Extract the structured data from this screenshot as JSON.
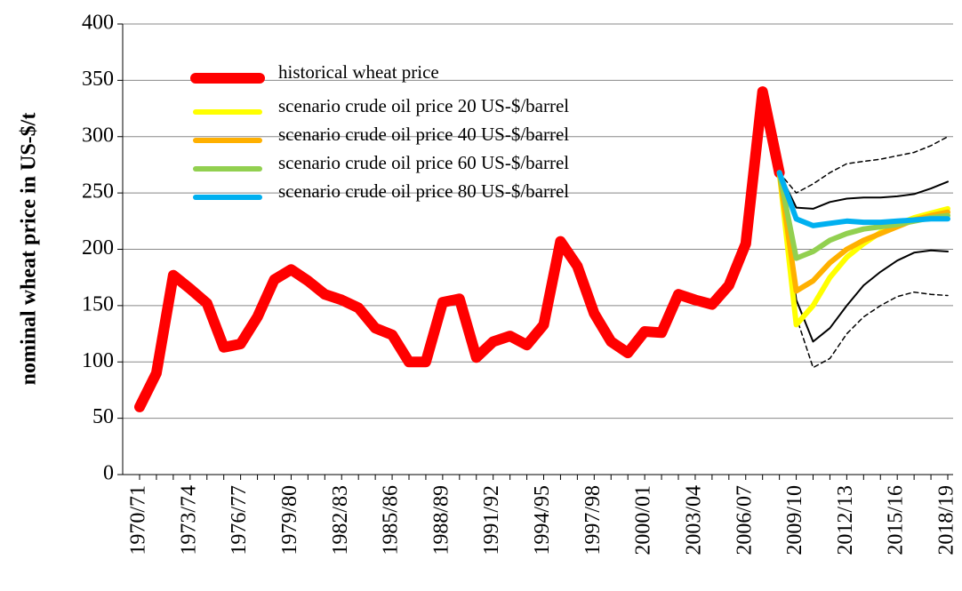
{
  "chart_data": {
    "type": "line",
    "y_label": "nominal wheat price in US-$/t",
    "categories": [
      "1970/71",
      null,
      null,
      "1973/74",
      null,
      null,
      "1976/77",
      null,
      null,
      "1979/80",
      null,
      null,
      "1982/83",
      null,
      null,
      "1985/86",
      null,
      null,
      "1988/89",
      null,
      null,
      "1991/92",
      null,
      null,
      "1994/95",
      null,
      null,
      "1997/98",
      null,
      null,
      "2000/01",
      null,
      null,
      "2003/04",
      null,
      null,
      "2006/07",
      null,
      null,
      "2009/10",
      null,
      null,
      "2012/13",
      null,
      null,
      "2015/16",
      null,
      null,
      "2018/19"
    ],
    "ylim": [
      0,
      400
    ],
    "yticks": [
      0,
      50,
      100,
      150,
      200,
      250,
      300,
      350,
      400
    ],
    "grid": true,
    "legend": "upper left",
    "series": [
      {
        "name": "historical wheat price",
        "color": "#ff0000",
        "width": 12,
        "values": [
          60,
          90,
          177,
          165,
          152,
          113,
          116,
          140,
          173,
          182,
          172,
          160,
          155,
          148,
          130,
          124,
          100,
          100,
          153,
          156,
          104,
          118,
          123,
          115,
          133,
          207,
          185,
          143,
          118,
          108,
          127,
          126,
          160,
          155,
          151,
          168,
          205,
          340,
          268,
          null,
          null,
          null,
          null,
          null,
          null,
          null,
          null,
          null,
          null
        ]
      },
      {
        "color": "#000000",
        "width": 1.5,
        "dash": true,
        "values": [
          null,
          null,
          null,
          null,
          null,
          null,
          null,
          null,
          null,
          null,
          null,
          null,
          null,
          null,
          null,
          null,
          null,
          null,
          null,
          null,
          null,
          null,
          null,
          null,
          null,
          null,
          null,
          null,
          null,
          null,
          null,
          null,
          null,
          null,
          null,
          null,
          null,
          null,
          268,
          250,
          258,
          268,
          276,
          278,
          280,
          283,
          286,
          292,
          300
        ]
      },
      {
        "color": "#000000",
        "width": 1.5,
        "dash": true,
        "values": [
          null,
          null,
          null,
          null,
          null,
          null,
          null,
          null,
          null,
          null,
          null,
          null,
          null,
          null,
          null,
          null,
          null,
          null,
          null,
          null,
          null,
          null,
          null,
          null,
          null,
          null,
          null,
          null,
          null,
          null,
          null,
          null,
          null,
          null,
          null,
          null,
          null,
          null,
          268,
          140,
          95,
          103,
          125,
          140,
          150,
          158,
          162,
          160,
          159
        ]
      },
      {
        "color": "#000000",
        "width": 2,
        "values": [
          null,
          null,
          null,
          null,
          null,
          null,
          null,
          null,
          null,
          null,
          null,
          null,
          null,
          null,
          null,
          null,
          null,
          null,
          null,
          null,
          null,
          null,
          null,
          null,
          null,
          null,
          null,
          null,
          null,
          null,
          null,
          null,
          null,
          null,
          null,
          null,
          null,
          null,
          268,
          237,
          236,
          242,
          245,
          246,
          246,
          247,
          249,
          254,
          260
        ]
      },
      {
        "color": "#000000",
        "width": 2,
        "values": [
          null,
          null,
          null,
          null,
          null,
          null,
          null,
          null,
          null,
          null,
          null,
          null,
          null,
          null,
          null,
          null,
          null,
          null,
          null,
          null,
          null,
          null,
          null,
          null,
          null,
          null,
          null,
          null,
          null,
          null,
          null,
          null,
          null,
          null,
          null,
          null,
          null,
          null,
          268,
          155,
          118,
          130,
          150,
          168,
          180,
          190,
          197,
          199,
          198
        ]
      },
      {
        "name": "scenario crude oil price 20 US-$/barrel",
        "color": "#ffff00",
        "width": 6,
        "values": [
          null,
          null,
          null,
          null,
          null,
          null,
          null,
          null,
          null,
          null,
          null,
          null,
          null,
          null,
          null,
          null,
          null,
          null,
          null,
          null,
          null,
          null,
          null,
          null,
          null,
          null,
          null,
          null,
          null,
          null,
          null,
          null,
          null,
          null,
          null,
          null,
          null,
          null,
          268,
          133,
          150,
          175,
          193,
          205,
          215,
          222,
          228,
          232,
          236
        ]
      },
      {
        "name": "scenario crude oil price 40 US-$/barrel",
        "color": "#ffb000",
        "width": 6,
        "values": [
          null,
          null,
          null,
          null,
          null,
          null,
          null,
          null,
          null,
          null,
          null,
          null,
          null,
          null,
          null,
          null,
          null,
          null,
          null,
          null,
          null,
          null,
          null,
          null,
          null,
          null,
          null,
          null,
          null,
          null,
          null,
          null,
          null,
          null,
          null,
          null,
          null,
          null,
          268,
          163,
          172,
          188,
          200,
          208,
          214,
          220,
          226,
          230,
          233
        ]
      },
      {
        "name": "scenario crude oil price 60 US-$/barrel",
        "color": "#92d050",
        "width": 6,
        "values": [
          null,
          null,
          null,
          null,
          null,
          null,
          null,
          null,
          null,
          null,
          null,
          null,
          null,
          null,
          null,
          null,
          null,
          null,
          null,
          null,
          null,
          null,
          null,
          null,
          null,
          null,
          null,
          null,
          null,
          null,
          null,
          null,
          null,
          null,
          null,
          null,
          null,
          null,
          268,
          192,
          198,
          208,
          214,
          218,
          220,
          222,
          225,
          228,
          230
        ]
      },
      {
        "name": "scenario crude oil price 80 US-$/barrel",
        "color": "#00b0f0",
        "width": 6,
        "values": [
          null,
          null,
          null,
          null,
          null,
          null,
          null,
          null,
          null,
          null,
          null,
          null,
          null,
          null,
          null,
          null,
          null,
          null,
          null,
          null,
          null,
          null,
          null,
          null,
          null,
          null,
          null,
          null,
          null,
          null,
          null,
          null,
          null,
          null,
          null,
          null,
          null,
          null,
          268,
          227,
          221,
          223,
          225,
          224,
          224,
          225,
          226,
          227,
          227
        ]
      }
    ]
  }
}
